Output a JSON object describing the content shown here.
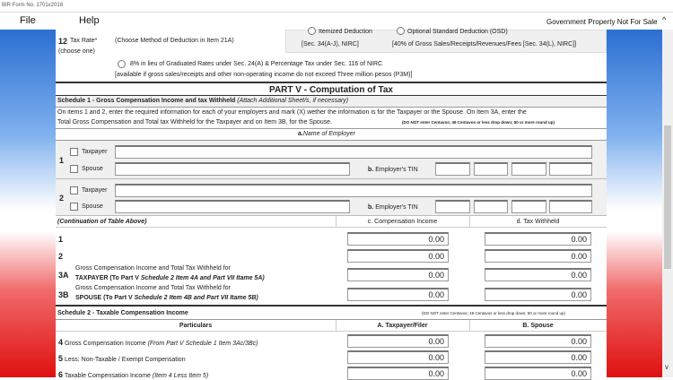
{
  "window": {
    "title": "BIR Form No. 1701v2018"
  },
  "menu": {
    "file": "File",
    "help": "Help",
    "notice": "Government Property Not For Sale"
  },
  "tax_rate": {
    "num": "12",
    "label": "Tax Rate*",
    "sub": "(choose one)",
    "instruction": "(Choose Method of Deduction in Item 21A)",
    "itemized": "Itemized Deduction",
    "itemized_ref": "[Sec. 34(A-J), NIRC]",
    "osd": "Optional Standard Deduction (OSD)",
    "osd_ref": "[40% of Gross Sales/Receipts/Revenues/Fees [Sec. 34(L), NIRC]]",
    "eight": "8% in lieu of Graduated Rates under Sec. 24(A) & Percentage Tax under Sec. 116 of NIRC",
    "eight_note": "[available if gross sales/receipts and other non-operating income do not exceed Three million pesos (P3M)]"
  },
  "part_v": {
    "title": "PART V - Computation of Tax"
  },
  "schedule1": {
    "title": "Schedule 1 - Gross Compensation Income and tax Withheld",
    "note": "(Attach Additional Sheet/s, if necessary)",
    "instr1": "On items 1 and 2, enter the required information for each of your employers and mark (X) wether the information is for the Taxpayer or the Spouse. On Item 3A, enter the",
    "instr2": "Total Gross Compensation and Total tax Withheld for the Taxpayer and on Item 3B, for the Spouse.",
    "donot": "(DO NOT enter Centavos; 49 Centavos or less drop down; 50 or more round up)",
    "name_header_a": "a.",
    "name_header": "Name of Employer",
    "taxpayer": "Taxpayer",
    "spouse": "Spouse",
    "tin_b": "b.",
    "tin": "Employer's TIN",
    "cont": "(Continuation of Table Above)",
    "col_c": "c. Compensation Income",
    "col_d": "d. Tax Withheld",
    "rows": [
      {
        "num": "1",
        "c": "0.00",
        "d": "0.00"
      },
      {
        "num": "2",
        "c": "0.00",
        "d": "0.00"
      },
      {
        "num": "3A",
        "line1": "Gross Compensation Income and Total Tax Withheld for",
        "line2a": "TAXPAYER (To Part V ",
        "line2b": "Schedule 2 Item 4A and Part VII Itame 5A)",
        "c": "0.00",
        "d": "0.00"
      },
      {
        "num": "3B",
        "line1": "Gross Compensation Income and Total Tax Withheld for",
        "line2a": "SPOUSE (To Part V ",
        "line2b": "Schedule 2 Item 4B and Part VII Itame 5B)",
        "c": "0.00",
        "d": "0.00"
      }
    ]
  },
  "schedule2": {
    "title": "Schedule 2 - Taxable Compensation Income",
    "donot": "(DO NOT enter Centavos; 49 Centavos or less drop down; 50 or more round up)",
    "col_p": "Particulars",
    "col_a": "A. Taxpayer/Filer",
    "col_b": "B. Spouse",
    "rows": [
      {
        "num": "4",
        "label": "Gross Compensation Income ",
        "note": "(From Part V Schedule 1 Item 3Ac/3Bc)",
        "a": "0.00",
        "b": "0.00"
      },
      {
        "num": "5",
        "label": "Less: Non-Taxable / Exempt Compensation",
        "note": "",
        "a": "0.00",
        "b": "0.00"
      },
      {
        "num": "6",
        "label": "Taxable Compensation Income ",
        "note": "(Item 4 Less Item 5)",
        "a": "0.00",
        "b": "0.00"
      }
    ]
  }
}
